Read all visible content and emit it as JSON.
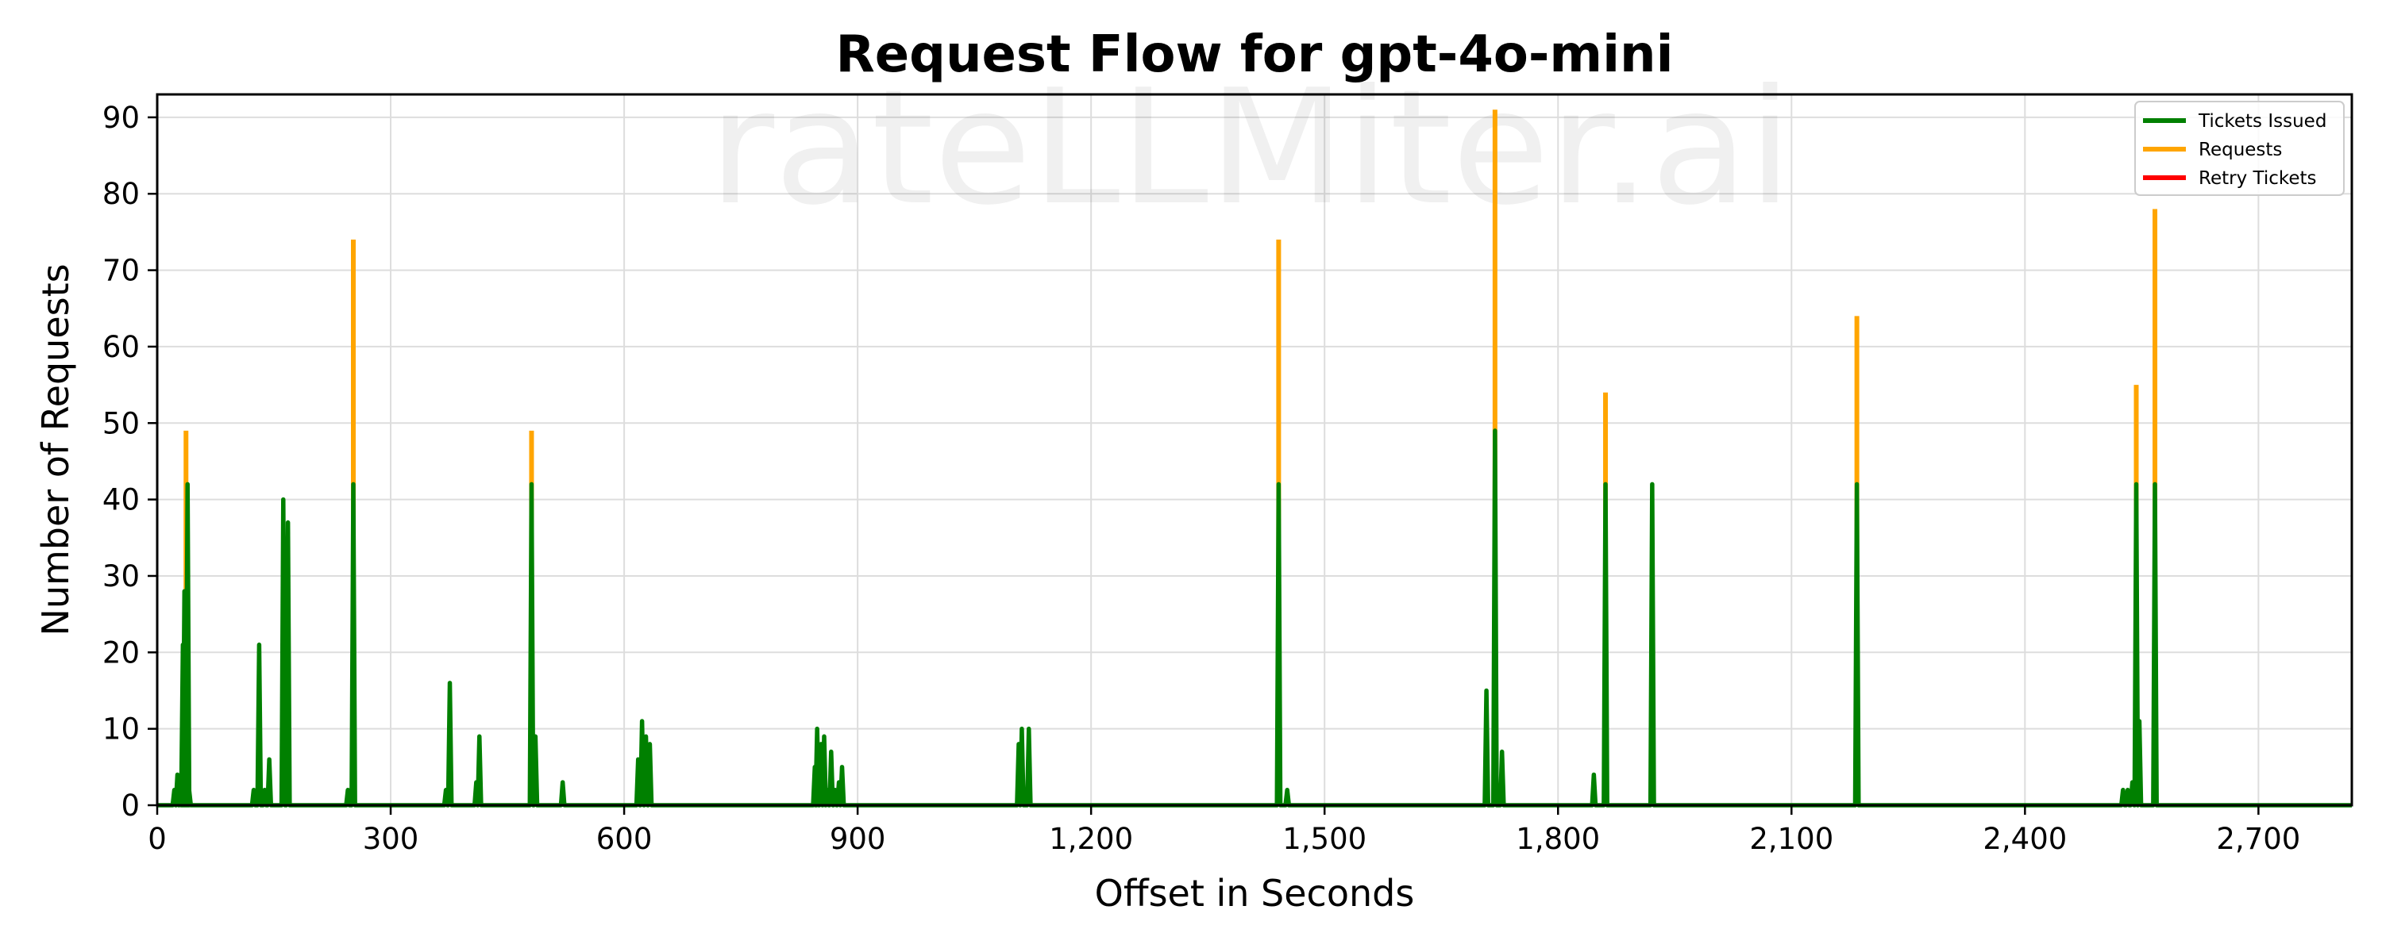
{
  "chart_data": {
    "type": "line",
    "title": "Request Flow for gpt-4o-mini",
    "xlabel": "Offset in Seconds",
    "ylabel": "Number of Requests",
    "watermark": "rateLLMiter.ai",
    "xlim": [
      0,
      2820
    ],
    "ylim": [
      0,
      93
    ],
    "x_ticks": [
      0,
      300,
      600,
      900,
      1200,
      1500,
      1800,
      2100,
      2400,
      2700
    ],
    "x_tick_labels": [
      "0",
      "300",
      "600",
      "900",
      "1,200",
      "1,500",
      "1,800",
      "2,100",
      "2,400",
      "2,700"
    ],
    "y_ticks": [
      0,
      10,
      20,
      30,
      40,
      50,
      60,
      70,
      80,
      90
    ],
    "y_tick_labels": [
      "0",
      "10",
      "20",
      "30",
      "40",
      "50",
      "60",
      "70",
      "80",
      "90"
    ],
    "grid": true,
    "legend_position": "top-right",
    "series": [
      {
        "name": "Requests",
        "color": "#ffa500",
        "points": [
          [
            37,
            49
          ],
          [
            252,
            74
          ],
          [
            481,
            49
          ],
          [
            1441,
            74
          ],
          [
            1719,
            91
          ],
          [
            1861,
            54
          ],
          [
            2184,
            64
          ],
          [
            2543,
            55
          ],
          [
            2567,
            78
          ]
        ]
      },
      {
        "name": "Tickets Issued",
        "color": "#008000",
        "points": [
          [
            22,
            2
          ],
          [
            26,
            4
          ],
          [
            30,
            2
          ],
          [
            33,
            21
          ],
          [
            35,
            28
          ],
          [
            39,
            42
          ],
          [
            41,
            2
          ],
          [
            124,
            2
          ],
          [
            131,
            21
          ],
          [
            138,
            2
          ],
          [
            144,
            6
          ],
          [
            162,
            40
          ],
          [
            168,
            37
          ],
          [
            245,
            2
          ],
          [
            252,
            42
          ],
          [
            371,
            2
          ],
          [
            376,
            16
          ],
          [
            410,
            3
          ],
          [
            414,
            9
          ],
          [
            481,
            42
          ],
          [
            486,
            9
          ],
          [
            521,
            3
          ],
          [
            618,
            6
          ],
          [
            623,
            11
          ],
          [
            628,
            9
          ],
          [
            633,
            8
          ],
          [
            845,
            5
          ],
          [
            848,
            10
          ],
          [
            853,
            8
          ],
          [
            857,
            9
          ],
          [
            861,
            2
          ],
          [
            866,
            7
          ],
          [
            871,
            2
          ],
          [
            876,
            3
          ],
          [
            880,
            5
          ],
          [
            1107,
            8
          ],
          [
            1111,
            10
          ],
          [
            1120,
            10
          ],
          [
            1441,
            42
          ],
          [
            1452,
            2
          ],
          [
            1708,
            15
          ],
          [
            1719,
            49
          ],
          [
            1728,
            7
          ],
          [
            1846,
            4
          ],
          [
            1861,
            42
          ],
          [
            1921,
            42
          ],
          [
            2184,
            42
          ],
          [
            2526,
            2
          ],
          [
            2532,
            2
          ],
          [
            2538,
            3
          ],
          [
            2543,
            42
          ],
          [
            2547,
            11
          ],
          [
            2567,
            42
          ]
        ]
      },
      {
        "name": "Retry Tickets",
        "color": "#ff0000",
        "points": []
      }
    ]
  }
}
